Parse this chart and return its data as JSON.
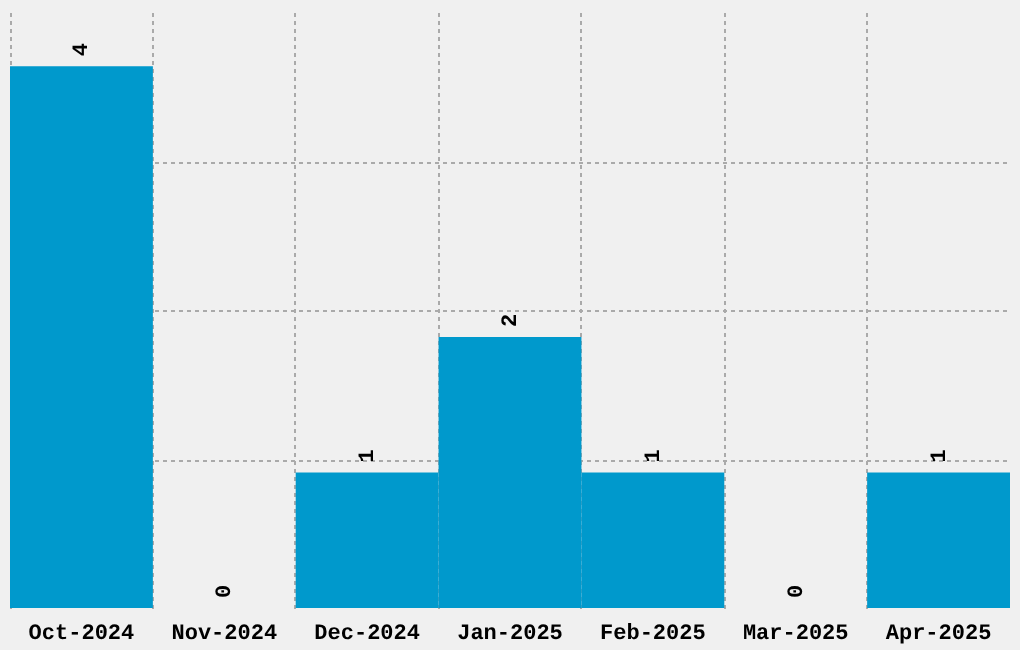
{
  "chart_data": {
    "type": "bar",
    "categories": [
      "Oct-2024",
      "Nov-2024",
      "Dec-2024",
      "Jan-2025",
      "Feb-2025",
      "Mar-2025",
      "Apr-2025"
    ],
    "values": [
      4,
      0,
      1,
      2,
      1,
      0,
      1
    ],
    "color": "#0099cc",
    "data_labels": true,
    "grid": true,
    "tick_labels": "x",
    "ylim": [
      0,
      4.4
    ],
    "yticks": [
      {
        "value": 1.1,
        "label": null
      },
      {
        "value": 2.2,
        "label": null
      },
      {
        "value": 3.3,
        "label": null
      }
    ]
  }
}
